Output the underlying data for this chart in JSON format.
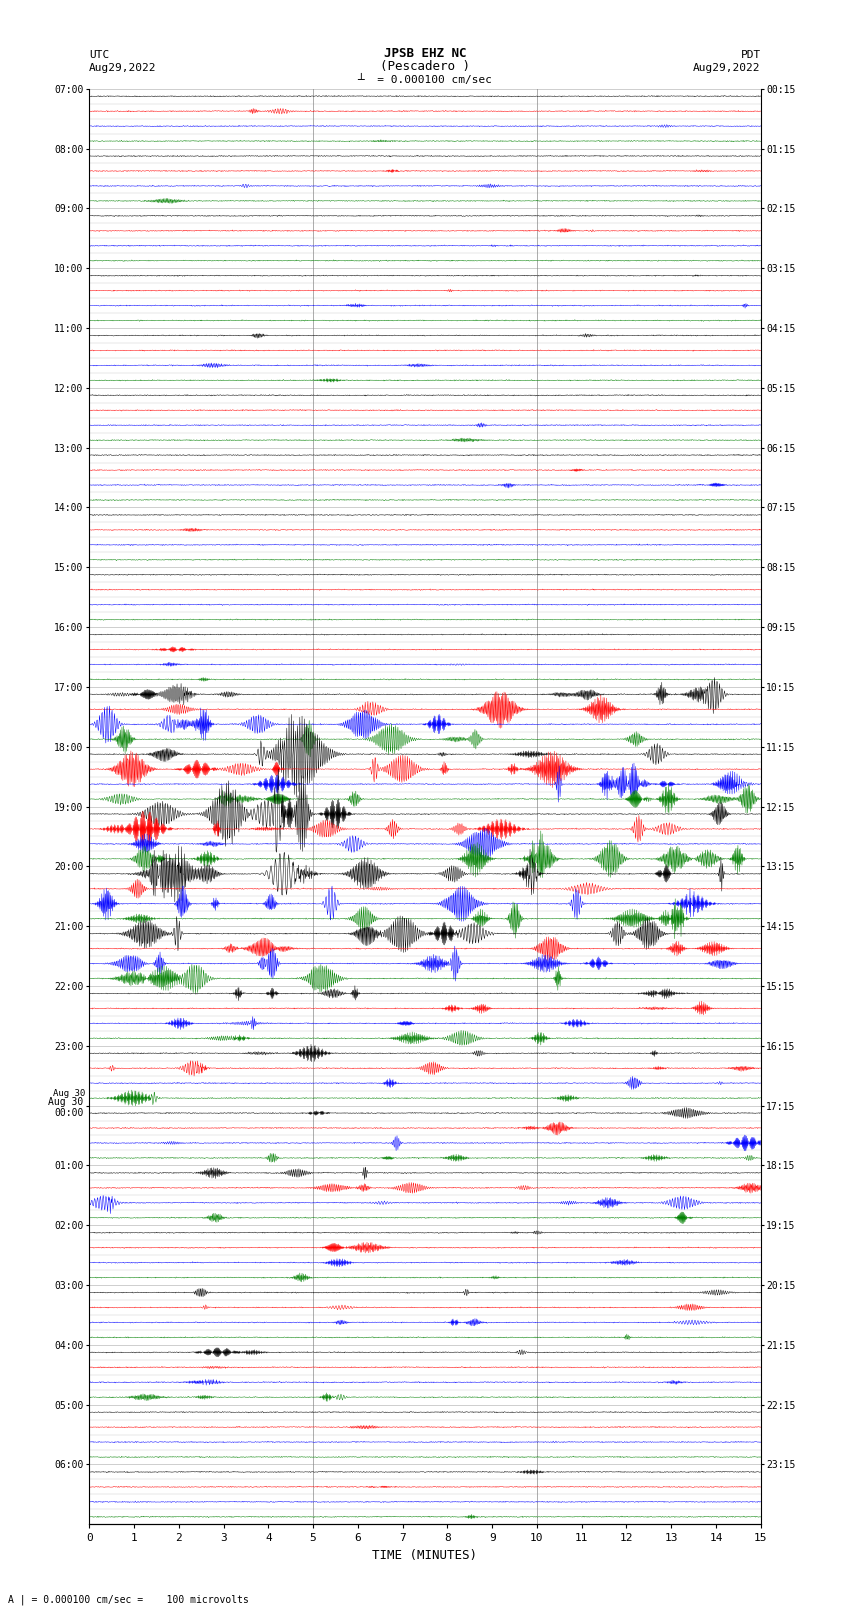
{
  "title_line1": "JPSB EHZ NC",
  "title_line2": "(Pescadero )",
  "scale_label": "= 0.000100 cm/sec",
  "utc_label": "UTC",
  "utc_date": "Aug29,2022",
  "pdt_label": "PDT",
  "pdt_date": "Aug29,2022",
  "xlabel": "TIME (MINUTES)",
  "left_times": [
    "07:00",
    "08:00",
    "09:00",
    "10:00",
    "11:00",
    "12:00",
    "13:00",
    "14:00",
    "15:00",
    "16:00",
    "17:00",
    "18:00",
    "19:00",
    "20:00",
    "21:00",
    "22:00",
    "23:00",
    "Aug 30\n00:00",
    "01:00",
    "02:00",
    "03:00",
    "04:00",
    "05:00",
    "06:00"
  ],
  "right_times": [
    "00:15",
    "01:15",
    "02:15",
    "03:15",
    "04:15",
    "05:15",
    "06:15",
    "07:15",
    "08:15",
    "09:15",
    "10:15",
    "11:15",
    "12:15",
    "13:15",
    "14:15",
    "15:15",
    "16:15",
    "17:15",
    "18:15",
    "19:15",
    "20:15",
    "21:15",
    "22:15",
    "23:15"
  ],
  "n_rows": 96,
  "colors_cycle": [
    "black",
    "red",
    "blue",
    "green"
  ],
  "bg_color": "white",
  "xmin": 0,
  "xmax": 15,
  "xticks": [
    0,
    1,
    2,
    3,
    4,
    5,
    6,
    7,
    8,
    9,
    10,
    11,
    12,
    13,
    14,
    15
  ],
  "figsize": [
    8.5,
    16.13
  ],
  "dpi": 100,
  "vline_x": [
    5,
    10
  ],
  "vline_color": "#888888",
  "grid_color": "#bbbbbb",
  "bottom_note": "A | = 0.000100 cm/sec =    100 microvolts"
}
